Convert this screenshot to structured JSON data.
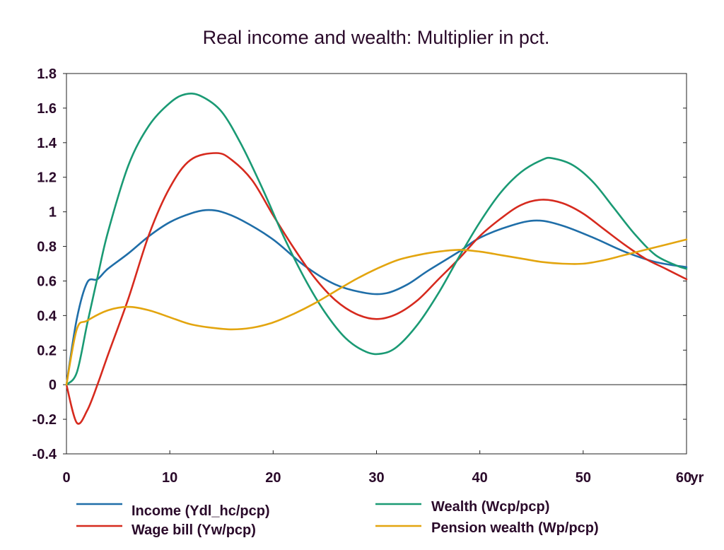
{
  "chart_data": {
    "type": "line",
    "title": "Real income and wealth: Multiplier in pct.",
    "xlabel": "",
    "ylabel": "",
    "x_unit_label": "yr",
    "xlim": [
      0,
      60
    ],
    "ylim": [
      -0.4,
      1.8
    ],
    "x_ticks": [
      0,
      10,
      20,
      30,
      40,
      50,
      60
    ],
    "x_tick_labels": [
      "0",
      "10",
      "20",
      "30",
      "40",
      "50",
      "60"
    ],
    "y_ticks": [
      -0.4,
      -0.2,
      0,
      0.2,
      0.4,
      0.6,
      0.8,
      1,
      1.2,
      1.4,
      1.6,
      1.8
    ],
    "y_tick_labels": [
      "-0.4",
      "-0.2",
      "0",
      "0.2",
      "0.4",
      "0.6",
      "0.8",
      "1",
      "1.2",
      "1.4",
      "1.6",
      "1.8"
    ],
    "grid": false,
    "zero_line": true,
    "legend_position": "bottom",
    "series": [
      {
        "name": "Income (Ydl_hc/pcp)",
        "color": "#1f6ea8",
        "points": [
          [
            0,
            0
          ],
          [
            1,
            0.38
          ],
          [
            2,
            0.59
          ],
          [
            3,
            0.61
          ],
          [
            4,
            0.67
          ],
          [
            6,
            0.76
          ],
          [
            8,
            0.86
          ],
          [
            10,
            0.94
          ],
          [
            12,
            0.99
          ],
          [
            13.5,
            1.01
          ],
          [
            15,
            1.0
          ],
          [
            17,
            0.95
          ],
          [
            20,
            0.84
          ],
          [
            23,
            0.69
          ],
          [
            26,
            0.58
          ],
          [
            29,
            0.53
          ],
          [
            31,
            0.53
          ],
          [
            33,
            0.58
          ],
          [
            35,
            0.66
          ],
          [
            38,
            0.77
          ],
          [
            40,
            0.85
          ],
          [
            43,
            0.92
          ],
          [
            45.5,
            0.95
          ],
          [
            48,
            0.92
          ],
          [
            51,
            0.85
          ],
          [
            54,
            0.77
          ],
          [
            57,
            0.71
          ],
          [
            60,
            0.68
          ]
        ]
      },
      {
        "name": "Wage bill (Yw/pcp)",
        "color": "#d62a1e",
        "points": [
          [
            0,
            0
          ],
          [
            1,
            -0.22
          ],
          [
            2,
            -0.15
          ],
          [
            3,
            0.0
          ],
          [
            4,
            0.17
          ],
          [
            6,
            0.5
          ],
          [
            8,
            0.87
          ],
          [
            10,
            1.14
          ],
          [
            12,
            1.3
          ],
          [
            14.5,
            1.34
          ],
          [
            16,
            1.3
          ],
          [
            18,
            1.18
          ],
          [
            20,
            0.98
          ],
          [
            22,
            0.79
          ],
          [
            24,
            0.62
          ],
          [
            26,
            0.49
          ],
          [
            28,
            0.41
          ],
          [
            30,
            0.38
          ],
          [
            32,
            0.41
          ],
          [
            34,
            0.49
          ],
          [
            36,
            0.61
          ],
          [
            38,
            0.73
          ],
          [
            40,
            0.86
          ],
          [
            42,
            0.96
          ],
          [
            44,
            1.04
          ],
          [
            46,
            1.07
          ],
          [
            48,
            1.05
          ],
          [
            50,
            0.99
          ],
          [
            52,
            0.9
          ],
          [
            54,
            0.81
          ],
          [
            56,
            0.73
          ],
          [
            58,
            0.67
          ],
          [
            60,
            0.61
          ]
        ]
      },
      {
        "name": "Wealth (Wcp/pcp)",
        "color": "#1a9a74",
        "points": [
          [
            0,
            0
          ],
          [
            1,
            0.07
          ],
          [
            2,
            0.35
          ],
          [
            3,
            0.62
          ],
          [
            4,
            0.88
          ],
          [
            6,
            1.27
          ],
          [
            8,
            1.5
          ],
          [
            10,
            1.63
          ],
          [
            11.5,
            1.68
          ],
          [
            13,
            1.67
          ],
          [
            15,
            1.58
          ],
          [
            17,
            1.38
          ],
          [
            19,
            1.13
          ],
          [
            21,
            0.86
          ],
          [
            23,
            0.62
          ],
          [
            25,
            0.42
          ],
          [
            27,
            0.27
          ],
          [
            29,
            0.19
          ],
          [
            30.5,
            0.18
          ],
          [
            32,
            0.22
          ],
          [
            34,
            0.35
          ],
          [
            36,
            0.53
          ],
          [
            38,
            0.74
          ],
          [
            40,
            0.94
          ],
          [
            42,
            1.11
          ],
          [
            44,
            1.23
          ],
          [
            46,
            1.3
          ],
          [
            47,
            1.31
          ],
          [
            49,
            1.27
          ],
          [
            51,
            1.17
          ],
          [
            53,
            1.02
          ],
          [
            55,
            0.87
          ],
          [
            57,
            0.75
          ],
          [
            59,
            0.69
          ],
          [
            60,
            0.67
          ]
        ]
      },
      {
        "name": "Pension wealth (Wp/pcp)",
        "color": "#e3a50f",
        "points": [
          [
            0,
            0
          ],
          [
            1,
            0.32
          ],
          [
            2,
            0.37
          ],
          [
            4,
            0.43
          ],
          [
            6,
            0.45
          ],
          [
            8,
            0.43
          ],
          [
            10,
            0.39
          ],
          [
            12,
            0.35
          ],
          [
            14,
            0.33
          ],
          [
            16,
            0.32
          ],
          [
            18,
            0.33
          ],
          [
            20,
            0.36
          ],
          [
            22,
            0.41
          ],
          [
            24,
            0.47
          ],
          [
            26,
            0.54
          ],
          [
            28,
            0.61
          ],
          [
            30,
            0.67
          ],
          [
            32,
            0.72
          ],
          [
            34,
            0.75
          ],
          [
            36,
            0.77
          ],
          [
            38,
            0.78
          ],
          [
            40,
            0.77
          ],
          [
            42,
            0.75
          ],
          [
            44,
            0.73
          ],
          [
            46,
            0.71
          ],
          [
            48,
            0.7
          ],
          [
            50,
            0.7
          ],
          [
            52,
            0.72
          ],
          [
            54,
            0.75
          ],
          [
            56,
            0.78
          ],
          [
            58,
            0.81
          ],
          [
            60,
            0.84
          ]
        ]
      }
    ]
  }
}
